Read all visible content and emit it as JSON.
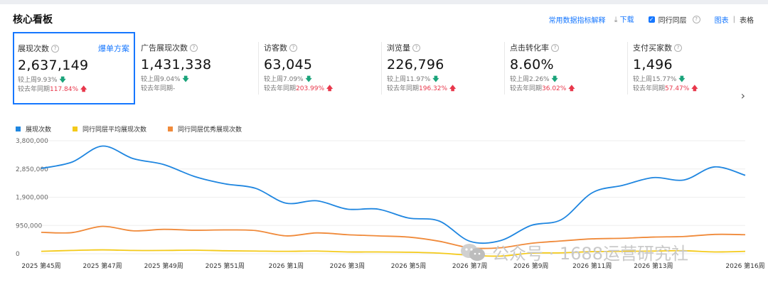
{
  "header": {
    "title": "核心看板",
    "metric_help": "常用数据指标解释",
    "download": "下载",
    "peer_tier": "同行同层",
    "view_chart": "图表",
    "view_table": "表格"
  },
  "plan_link": "爆单方案",
  "cards": [
    {
      "label": "展现次数",
      "value": "2,637,149",
      "wow_label": "较上周",
      "wow": "9.93%",
      "wow_dir": "down",
      "yoy_label": "较去年同期",
      "yoy": "117.84%",
      "yoy_dir": "up"
    },
    {
      "label": "广告展现次数",
      "value": "1,431,338",
      "wow_label": "较上周",
      "wow": "9.04%",
      "wow_dir": "down",
      "yoy_label": "较去年同期",
      "yoy": "-",
      "yoy_dir": "none"
    },
    {
      "label": "访客数",
      "value": "63,045",
      "wow_label": "较上周",
      "wow": "7.09%",
      "wow_dir": "down",
      "yoy_label": "较去年同期",
      "yoy": "203.99%",
      "yoy_dir": "up"
    },
    {
      "label": "浏览量",
      "value": "226,796",
      "wow_label": "较上周",
      "wow": "11.97%",
      "wow_dir": "down",
      "yoy_label": "较去年同期",
      "yoy": "196.32%",
      "yoy_dir": "up"
    },
    {
      "label": "点击转化率",
      "value": "8.60%",
      "wow_label": "较上周",
      "wow": "2.26%",
      "wow_dir": "down",
      "yoy_label": "较去年同期",
      "yoy": "36.02%",
      "yoy_dir": "up"
    },
    {
      "label": "支付买家数",
      "value": "1,496",
      "wow_label": "较上周",
      "wow": "15.77%",
      "wow_dir": "down",
      "yoy_label": "较去年同期",
      "yoy": "57.47%",
      "yoy_dir": "up"
    }
  ],
  "watermark": "公众号 · 1688运营研究社",
  "colors": {
    "accent": "#1677ff",
    "up": "#e8374b",
    "down": "#1aa37a",
    "series_blue": "#1f86e0",
    "series_yellow": "#f4ca1a",
    "series_orange": "#f08a3a"
  },
  "chart_data": {
    "type": "line",
    "x": [
      "2025 第45周",
      "2025 第46周",
      "2025 第47周",
      "2025 第48周",
      "2025 第49周",
      "2025 第50周",
      "2025 第51周",
      "2025 第52周",
      "2026 第1周",
      "2026 第2周",
      "2026 第3周",
      "2026 第4周",
      "2026 第5周",
      "2026 第6周",
      "2026 第7周",
      "2026 第8周",
      "2026 第9周",
      "2026 第10周",
      "2026 第11周",
      "2026 第12周",
      "2026 第13周",
      "2026 第14周",
      "2026 第15周",
      "2026 第16周"
    ],
    "x_labels": [
      "2025 第45周",
      "2025 第47周",
      "2025 第49周",
      "2025 第51周",
      "2026 第1周",
      "2026 第3周",
      "2026 第5周",
      "2026 第7周",
      "2026 第9周",
      "2026 第11周",
      "2026 第13周",
      "2026 第16周"
    ],
    "y_ticks": [
      "3,800,000",
      "2,850,000",
      "1,900,000",
      "950,000",
      "0"
    ],
    "ylim": [
      0,
      3800000
    ],
    "series": [
      {
        "name": "展现次数",
        "color": "#1f86e0",
        "values": [
          2870000,
          3080000,
          3620000,
          3200000,
          3000000,
          2600000,
          2350000,
          2200000,
          1700000,
          1780000,
          1500000,
          1500000,
          1200000,
          1100000,
          420000,
          440000,
          950000,
          1150000,
          2050000,
          2300000,
          2560000,
          2480000,
          2920000,
          2637149
        ]
      },
      {
        "name": "同行同层平均展现次数",
        "color": "#f4ca1a",
        "values": [
          80000,
          110000,
          130000,
          110000,
          110000,
          120000,
          100000,
          90000,
          80000,
          90000,
          60000,
          60000,
          50000,
          20000,
          -50000,
          -80000,
          20000,
          30000,
          70000,
          80000,
          90000,
          100000,
          60000,
          80000
        ]
      },
      {
        "name": "同行同层优秀展现次数",
        "color": "#f08a3a",
        "values": [
          720000,
          710000,
          920000,
          770000,
          820000,
          790000,
          800000,
          780000,
          600000,
          700000,
          640000,
          600000,
          560000,
          420000,
          200000,
          200000,
          350000,
          430000,
          500000,
          520000,
          560000,
          580000,
          650000,
          640000
        ]
      }
    ],
    "grid": true,
    "legend": "top-left"
  }
}
